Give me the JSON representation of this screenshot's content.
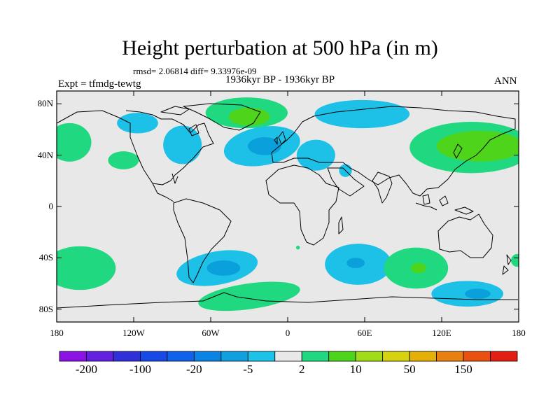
{
  "title": "Height perturbation at 500 hPa (in m)",
  "stats_line": "rmsd= 2.06814 diff= 9.33976e-09",
  "period_line": "1936kyr BP - 1936kyr BP",
  "expt_label": "Expt = tfmdg-tewtg",
  "season_label": "ANN",
  "map": {
    "background": "#e8e8e8",
    "lon_range": [
      -180,
      180
    ],
    "lat_range": [
      -90,
      90
    ],
    "y_ticks": [
      {
        "lat": 80,
        "label": "80N"
      },
      {
        "lat": 40,
        "label": "40N"
      },
      {
        "lat": 0,
        "label": "0"
      },
      {
        "lat": -40,
        "label": "40S"
      },
      {
        "lat": -80,
        "label": "80S"
      }
    ],
    "x_ticks": [
      {
        "lon": -180,
        "label": "180"
      },
      {
        "lon": -120,
        "label": "120W"
      },
      {
        "lon": -60,
        "label": "60W"
      },
      {
        "lon": 0,
        "label": "0"
      },
      {
        "lon": 60,
        "label": "60E"
      },
      {
        "lon": 120,
        "label": "120E"
      },
      {
        "lon": 180,
        "label": "180"
      }
    ],
    "anomalies": [
      {
        "name": "neg-na-west",
        "sign": "neg",
        "lon": -117,
        "lat": 65,
        "rx": 16,
        "ry": 8,
        "rot": 0
      },
      {
        "name": "neg-na-east",
        "sign": "neg",
        "lon": -82,
        "lat": 48,
        "rx": 15,
        "ry": 15,
        "rot": 0
      },
      {
        "name": "neg-atlantic",
        "sign": "neg",
        "lon": -20,
        "lat": 47,
        "rx": 30,
        "ry": 15,
        "rot": -10
      },
      {
        "name": "neg-europe",
        "sign": "neg",
        "lon": 22,
        "lat": 40,
        "rx": 15,
        "ry": 12,
        "rot": 0
      },
      {
        "name": "neg-middle-east",
        "sign": "neg",
        "lon": 45,
        "lat": 28,
        "rx": 5,
        "ry": 5,
        "rot": 0
      },
      {
        "name": "neg-siberia",
        "sign": "neg",
        "lon": 58,
        "lat": 72,
        "rx": 37,
        "ry": 11,
        "rot": 0
      },
      {
        "name": "neg-south-america",
        "sign": "neg",
        "lon": -55,
        "lat": -48,
        "rx": 32,
        "ry": 13,
        "rot": -10
      },
      {
        "name": "neg-south-africa",
        "sign": "neg",
        "lon": 55,
        "lat": -45,
        "rx": 26,
        "ry": 16,
        "rot": 0
      },
      {
        "name": "neg-south-pacific",
        "sign": "neg",
        "lon": 140,
        "lat": -68,
        "rx": 28,
        "ry": 10,
        "rot": 0
      },
      {
        "name": "pos-greenland",
        "sign": "pos",
        "lon": -32,
        "lat": 73,
        "rx": 32,
        "ry": 12,
        "rot": 0
      },
      {
        "name": "pos-north-pacific-west",
        "sign": "pos",
        "lon": -170,
        "lat": 50,
        "rx": 17,
        "ry": 15,
        "rot": 0
      },
      {
        "name": "pos-pacific-center",
        "sign": "pos",
        "lon": -128,
        "lat": 36,
        "rx": 12,
        "ry": 7,
        "rot": 0
      },
      {
        "name": "pos-east-asia",
        "sign": "pos",
        "lon": 143,
        "lat": 46,
        "rx": 48,
        "ry": 20,
        "rot": 0
      },
      {
        "name": "pos-south-pacific-west",
        "sign": "pos",
        "lon": -162,
        "lat": -48,
        "rx": 28,
        "ry": 17,
        "rot": 0
      },
      {
        "name": "pos-indian-ocean",
        "sign": "pos",
        "lon": 100,
        "lat": -48,
        "rx": 25,
        "ry": 16,
        "rot": 0
      },
      {
        "name": "pos-southern-atlantic",
        "sign": "pos",
        "lon": -30,
        "lat": -70,
        "rx": 40,
        "ry": 10,
        "rot": -8
      },
      {
        "name": "pos-east-edge",
        "sign": "pos",
        "lon": 179,
        "lat": -42,
        "rx": 5,
        "ry": 5,
        "rot": 0
      },
      {
        "name": "pos-west-edge",
        "sign": "pos",
        "lon": -181,
        "lat": 48,
        "rx": 6,
        "ry": 8,
        "rot": 0
      },
      {
        "name": "pos-small-atlantic",
        "sign": "pos",
        "lon": 8,
        "lat": -32,
        "rx": 1.5,
        "ry": 1.5,
        "rot": 0
      }
    ],
    "cores": [
      {
        "name": "core-atlantic",
        "sign": "neg",
        "lon": -18,
        "lat": 47,
        "rx": 13,
        "ry": 7,
        "rot": 0
      },
      {
        "name": "core-south-america",
        "sign": "neg",
        "lon": -50,
        "lat": -48,
        "rx": 13,
        "ry": 6,
        "rot": 0
      },
      {
        "name": "core-south-africa",
        "sign": "neg",
        "lon": 53,
        "lat": -44,
        "rx": 7,
        "ry": 4,
        "rot": 0
      },
      {
        "name": "core-south-pacific",
        "sign": "neg",
        "lon": 148,
        "lat": -68,
        "rx": 10,
        "ry": 4,
        "rot": 0
      },
      {
        "name": "core-east-asia",
        "sign": "pos",
        "lon": 150,
        "lat": 47,
        "rx": 34,
        "ry": 12,
        "rot": 0
      },
      {
        "name": "core-greenland",
        "sign": "pos",
        "lon": -30,
        "lat": 70,
        "rx": 16,
        "ry": 7,
        "rot": 0
      },
      {
        "name": "core-indian-ocean",
        "sign": "pos",
        "lon": 102,
        "lat": -48,
        "rx": 6,
        "ry": 4,
        "rot": 0
      }
    ],
    "colors": {
      "neg": "#1dc0e6",
      "neg_core": "#0aa0dc",
      "pos": "#20d880",
      "pos_core": "#4ed41a"
    }
  },
  "colorbar": {
    "colors": [
      "#8a12e2",
      "#6420e0",
      "#3030d8",
      "#1848e6",
      "#1062ea",
      "#0a84e4",
      "#10a0e0",
      "#1cc2e8",
      "#e8e8e8",
      "#20d880",
      "#4cd41a",
      "#a0dc18",
      "#d6d210",
      "#e4b008",
      "#e88010",
      "#ea5010",
      "#e41e12"
    ],
    "labels": [
      {
        "boundary": 1,
        "text": "-200"
      },
      {
        "boundary": 3,
        "text": "-100"
      },
      {
        "boundary": 5,
        "text": "-20"
      },
      {
        "boundary": 7,
        "text": "-5"
      },
      {
        "boundary": 9,
        "text": "2"
      },
      {
        "boundary": 11,
        "text": "10"
      },
      {
        "boundary": 13,
        "text": "50"
      },
      {
        "boundary": 15,
        "text": "150"
      }
    ]
  }
}
